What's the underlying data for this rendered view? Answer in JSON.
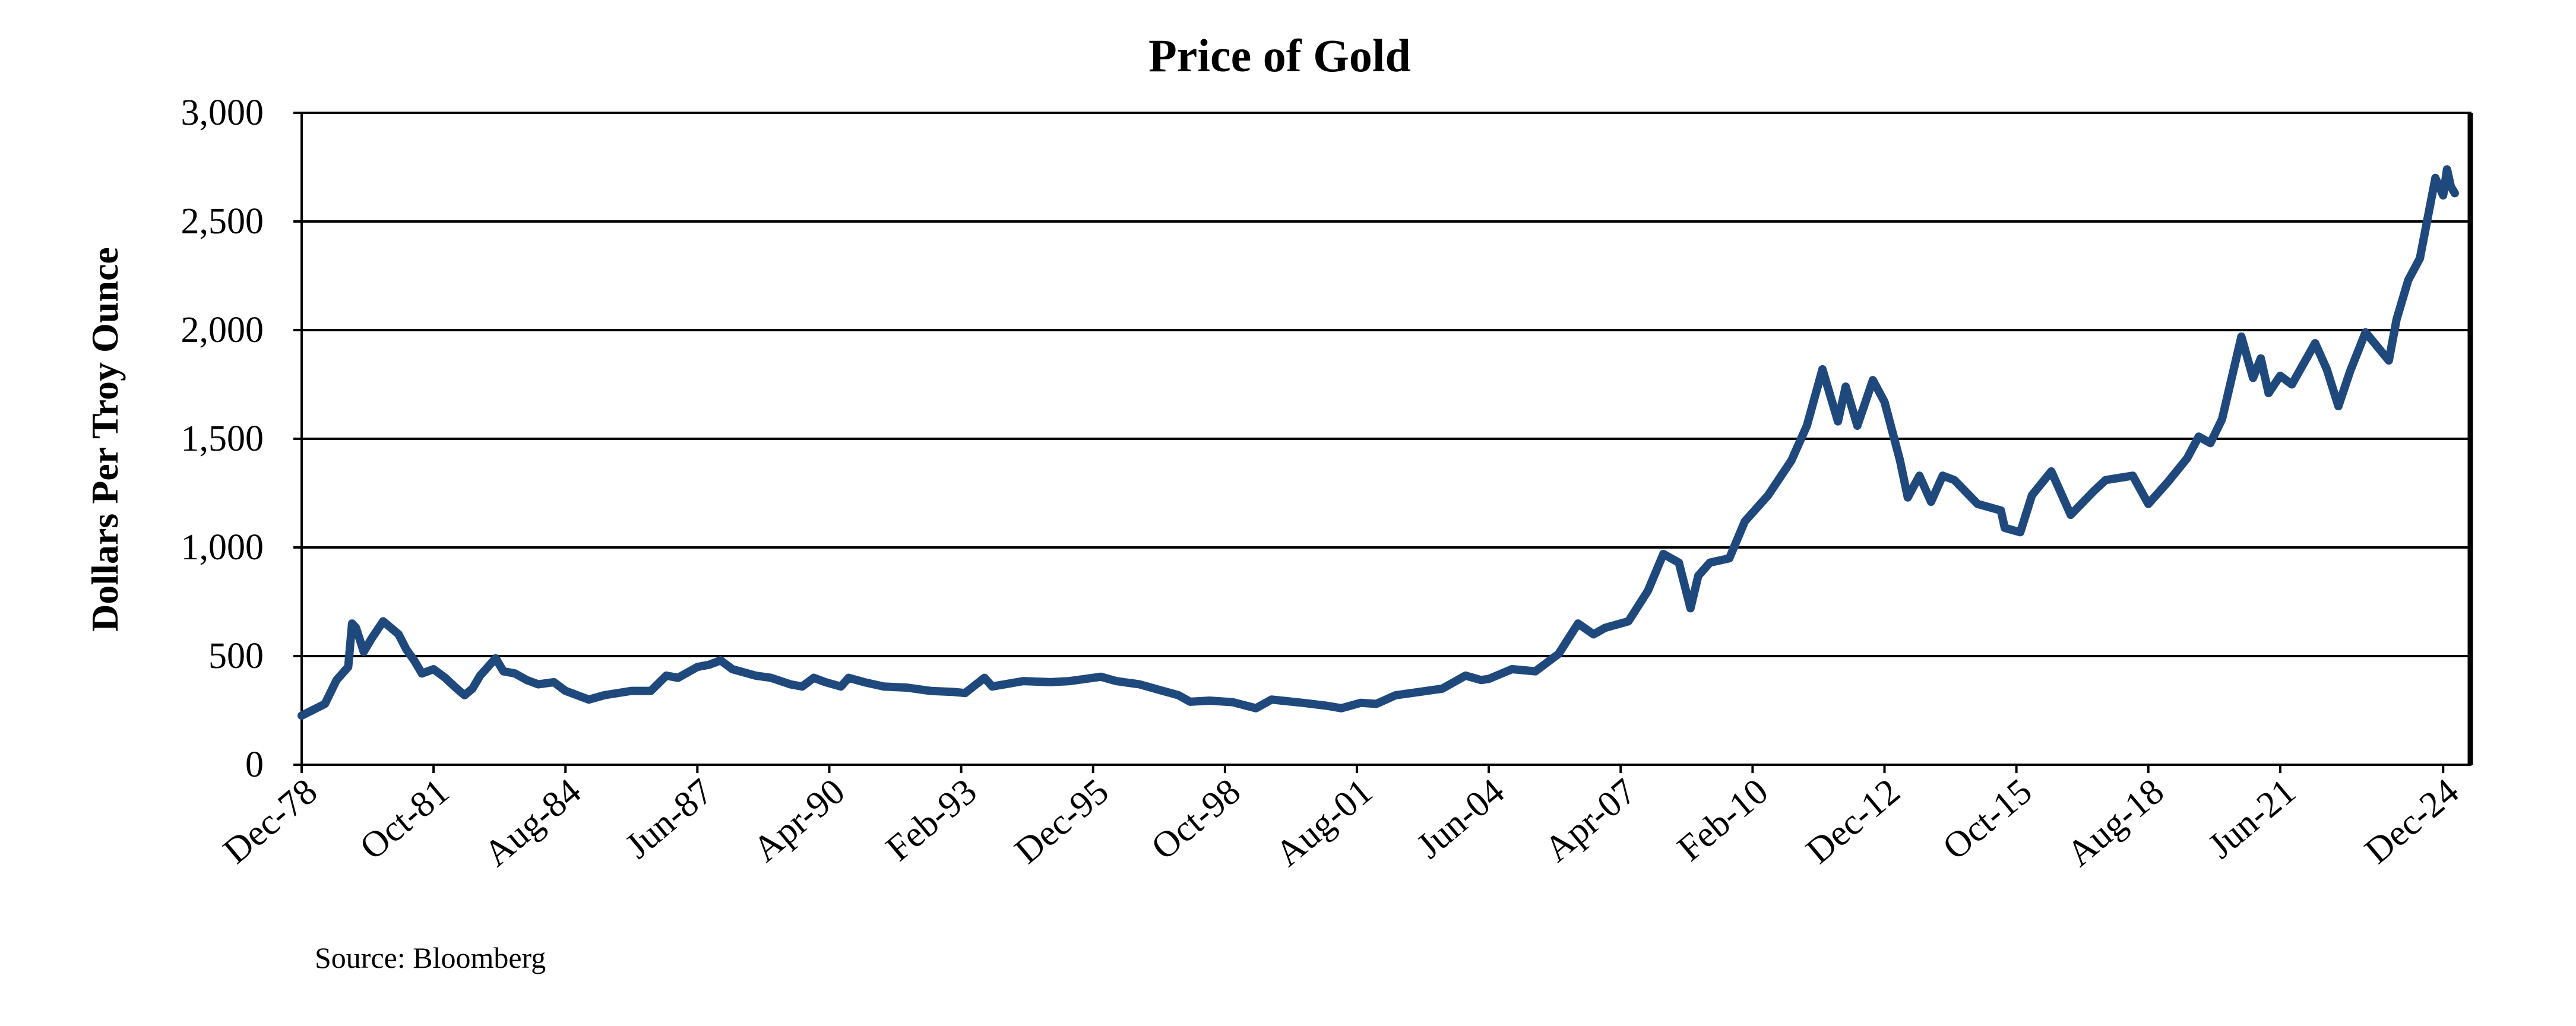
{
  "chart_data": {
    "type": "line",
    "title": "Price of Gold",
    "ylabel": "Dollars Per Troy Ounce",
    "xlabel": "",
    "source": "Source: Bloomberg",
    "ylim": [
      0,
      3000
    ],
    "yticks": [
      0,
      500,
      1000,
      1500,
      2000,
      2500,
      3000
    ],
    "ytick_labels": [
      "0",
      "500",
      "1,000",
      "1,500",
      "2,000",
      "2,500",
      "3,000"
    ],
    "xlim": [
      "1978-12",
      "2025-07"
    ],
    "xticks": [
      {
        "date": "1978-12",
        "label": "Dec-78"
      },
      {
        "date": "1981-10",
        "label": "Oct-81"
      },
      {
        "date": "1984-08",
        "label": "Aug-84"
      },
      {
        "date": "1987-06",
        "label": "Jun-87"
      },
      {
        "date": "1990-04",
        "label": "Apr-90"
      },
      {
        "date": "1993-02",
        "label": "Feb-93"
      },
      {
        "date": "1995-12",
        "label": "Dec-95"
      },
      {
        "date": "1998-10",
        "label": "Oct-98"
      },
      {
        "date": "2001-08",
        "label": "Aug-01"
      },
      {
        "date": "2004-06",
        "label": "Jun-04"
      },
      {
        "date": "2007-04",
        "label": "Apr-07"
      },
      {
        "date": "2010-02",
        "label": "Feb-10"
      },
      {
        "date": "2012-12",
        "label": "Dec-12"
      },
      {
        "date": "2015-10",
        "label": "Oct-15"
      },
      {
        "date": "2018-08",
        "label": "Aug-18"
      },
      {
        "date": "2021-06",
        "label": "Jun-21"
      },
      {
        "date": "2024-12",
        "label": "Dec-24"
      }
    ],
    "grid": "horizontal",
    "legend": "none",
    "line_color": "#1F497D",
    "series": [
      {
        "points": [
          [
            "1978-12",
            226
          ],
          [
            "1979-06",
            280
          ],
          [
            "1979-09",
            390
          ],
          [
            "1979-12",
            450
          ],
          [
            "1980-01",
            650
          ],
          [
            "1980-02",
            630
          ],
          [
            "1980-04",
            520
          ],
          [
            "1980-06",
            580
          ],
          [
            "1980-09",
            660
          ],
          [
            "1980-11",
            630
          ],
          [
            "1981-01",
            600
          ],
          [
            "1981-03",
            530
          ],
          [
            "1981-05",
            480
          ],
          [
            "1981-07",
            420
          ],
          [
            "1981-10",
            440
          ],
          [
            "1982-01",
            400
          ],
          [
            "1982-04",
            350
          ],
          [
            "1982-06",
            320
          ],
          [
            "1982-08",
            350
          ],
          [
            "1982-10",
            410
          ],
          [
            "1983-01",
            470
          ],
          [
            "1983-02",
            490
          ],
          [
            "1983-04",
            430
          ],
          [
            "1983-07",
            420
          ],
          [
            "1983-10",
            390
          ],
          [
            "1984-01",
            370
          ],
          [
            "1984-05",
            380
          ],
          [
            "1984-08",
            340
          ],
          [
            "1985-02",
            300
          ],
          [
            "1985-06",
            320
          ],
          [
            "1986-01",
            340
          ],
          [
            "1986-06",
            340
          ],
          [
            "1986-10",
            410
          ],
          [
            "1987-01",
            400
          ],
          [
            "1987-06",
            450
          ],
          [
            "1987-09",
            460
          ],
          [
            "1987-12",
            480
          ],
          [
            "1988-03",
            440
          ],
          [
            "1988-09",
            410
          ],
          [
            "1989-01",
            400
          ],
          [
            "1989-06",
            370
          ],
          [
            "1989-09",
            360
          ],
          [
            "1989-12",
            400
          ],
          [
            "1990-03",
            380
          ],
          [
            "1990-07",
            360
          ],
          [
            "1990-09",
            400
          ],
          [
            "1991-01",
            380
          ],
          [
            "1991-06",
            360
          ],
          [
            "1991-12",
            355
          ],
          [
            "1992-06",
            340
          ],
          [
            "1992-12",
            335
          ],
          [
            "1993-03",
            330
          ],
          [
            "1993-08",
            400
          ],
          [
            "1993-10",
            360
          ],
          [
            "1994-06",
            385
          ],
          [
            "1995-01",
            380
          ],
          [
            "1995-06",
            385
          ],
          [
            "1996-02",
            405
          ],
          [
            "1996-06",
            385
          ],
          [
            "1996-12",
            370
          ],
          [
            "1997-06",
            340
          ],
          [
            "1997-10",
            320
          ],
          [
            "1998-01",
            290
          ],
          [
            "1998-06",
            295
          ],
          [
            "1998-12",
            288
          ],
          [
            "1999-06",
            260
          ],
          [
            "1999-10",
            300
          ],
          [
            "2000-06",
            285
          ],
          [
            "2000-12",
            272
          ],
          [
            "2001-04",
            260
          ],
          [
            "2001-09",
            285
          ],
          [
            "2002-01",
            280
          ],
          [
            "2002-06",
            320
          ],
          [
            "2002-12",
            335
          ],
          [
            "2003-06",
            350
          ],
          [
            "2003-12",
            410
          ],
          [
            "2004-04",
            390
          ],
          [
            "2004-06",
            395
          ],
          [
            "2004-12",
            440
          ],
          [
            "2005-06",
            430
          ],
          [
            "2005-12",
            510
          ],
          [
            "2006-05",
            650
          ],
          [
            "2006-09",
            600
          ],
          [
            "2006-12",
            630
          ],
          [
            "2007-06",
            660
          ],
          [
            "2007-11",
            800
          ],
          [
            "2008-03",
            970
          ],
          [
            "2008-07",
            930
          ],
          [
            "2008-10",
            720
          ],
          [
            "2008-12",
            870
          ],
          [
            "2009-03",
            930
          ],
          [
            "2009-08",
            950
          ],
          [
            "2009-12",
            1120
          ],
          [
            "2010-06",
            1240
          ],
          [
            "2010-12",
            1400
          ],
          [
            "2011-04",
            1560
          ],
          [
            "2011-08",
            1820
          ],
          [
            "2011-12",
            1580
          ],
          [
            "2012-02",
            1740
          ],
          [
            "2012-05",
            1560
          ],
          [
            "2012-09",
            1770
          ],
          [
            "2012-12",
            1670
          ],
          [
            "2013-04",
            1400
          ],
          [
            "2013-06",
            1230
          ],
          [
            "2013-09",
            1330
          ],
          [
            "2013-12",
            1210
          ],
          [
            "2014-03",
            1330
          ],
          [
            "2014-06",
            1310
          ],
          [
            "2014-12",
            1200
          ],
          [
            "2015-06",
            1170
          ],
          [
            "2015-07",
            1090
          ],
          [
            "2015-11",
            1070
          ],
          [
            "2016-02",
            1240
          ],
          [
            "2016-07",
            1350
          ],
          [
            "2016-12",
            1150
          ],
          [
            "2017-06",
            1260
          ],
          [
            "2017-09",
            1310
          ],
          [
            "2018-04",
            1330
          ],
          [
            "2018-08",
            1200
          ],
          [
            "2019-01",
            1300
          ],
          [
            "2019-06",
            1410
          ],
          [
            "2019-09",
            1510
          ],
          [
            "2019-12",
            1480
          ],
          [
            "2020-03",
            1590
          ],
          [
            "2020-08",
            1970
          ],
          [
            "2020-11",
            1780
          ],
          [
            "2021-01",
            1870
          ],
          [
            "2021-03",
            1710
          ],
          [
            "2021-06",
            1790
          ],
          [
            "2021-09",
            1750
          ],
          [
            "2022-03",
            1940
          ],
          [
            "2022-06",
            1820
          ],
          [
            "2022-09",
            1650
          ],
          [
            "2022-12",
            1810
          ],
          [
            "2023-04",
            1990
          ],
          [
            "2023-10",
            1860
          ],
          [
            "2023-12",
            2050
          ],
          [
            "2024-03",
            2230
          ],
          [
            "2024-06",
            2330
          ],
          [
            "2024-10",
            2700
          ],
          [
            "2024-12",
            2620
          ],
          [
            "2025-01",
            2740
          ],
          [
            "2025-02",
            2660
          ],
          [
            "2025-03",
            2630
          ]
        ]
      }
    ]
  }
}
